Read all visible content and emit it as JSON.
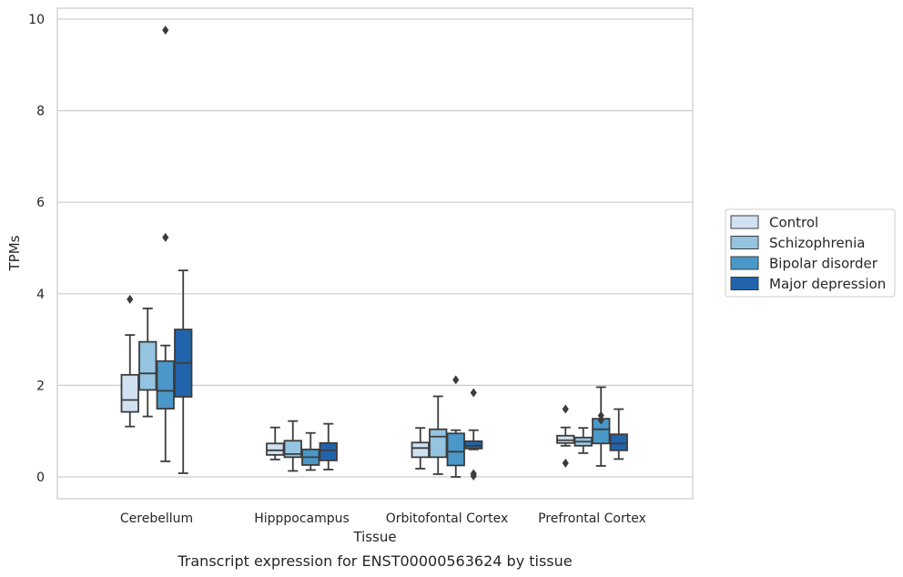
{
  "chart_data": {
    "type": "box",
    "caption": "Transcript expression for ENST00000563624 by tissue",
    "xlabel": "Tissue",
    "ylabel": "TPMs",
    "ylim": [
      -0.45,
      10.25
    ],
    "yticks": [
      0,
      2,
      4,
      6,
      8,
      10
    ],
    "grid": true,
    "legend_position": "right",
    "categories": [
      "Cerebellum",
      "Hipppocampus",
      "Orbitofontal Cortex",
      "Prefrontal Cortex"
    ],
    "series": [
      {
        "name": "Control",
        "color": "#d0e1f2",
        "boxes": [
          {
            "whisker_low": 1.1,
            "q1": 1.42,
            "median": 1.68,
            "q3": 2.23,
            "whisker_high": 3.1,
            "outliers": [
              3.88
            ]
          },
          {
            "whisker_low": 0.38,
            "q1": 0.48,
            "median": 0.58,
            "q3": 0.73,
            "whisker_high": 1.08,
            "outliers": []
          },
          {
            "whisker_low": 0.18,
            "q1": 0.43,
            "median": 0.63,
            "q3": 0.75,
            "whisker_high": 1.07,
            "outliers": []
          },
          {
            "whisker_low": 0.68,
            "q1": 0.74,
            "median": 0.8,
            "q3": 0.9,
            "whisker_high": 1.08,
            "outliers": [
              1.48,
              0.3
            ]
          }
        ]
      },
      {
        "name": "Schizophrenia",
        "color": "#94c4df",
        "boxes": [
          {
            "whisker_low": 1.32,
            "q1": 1.9,
            "median": 2.26,
            "q3": 2.95,
            "whisker_high": 3.68,
            "outliers": []
          },
          {
            "whisker_low": 0.13,
            "q1": 0.43,
            "median": 0.5,
            "q3": 0.79,
            "whisker_high": 1.22,
            "outliers": []
          },
          {
            "whisker_low": 0.06,
            "q1": 0.43,
            "median": 0.88,
            "q3": 1.04,
            "whisker_high": 1.76,
            "outliers": []
          },
          {
            "whisker_low": 0.52,
            "q1": 0.68,
            "median": 0.77,
            "q3": 0.86,
            "whisker_high": 1.07,
            "outliers": []
          }
        ]
      },
      {
        "name": "Bipolar disorder",
        "color": "#4a98c9",
        "boxes": [
          {
            "whisker_low": 0.34,
            "q1": 1.49,
            "median": 1.88,
            "q3": 2.53,
            "whisker_high": 2.87,
            "outliers": [
              9.76,
              5.23
            ]
          },
          {
            "whisker_low": 0.15,
            "q1": 0.26,
            "median": 0.43,
            "q3": 0.6,
            "whisker_high": 0.96,
            "outliers": []
          },
          {
            "whisker_low": 0.0,
            "q1": 0.25,
            "median": 0.55,
            "q3": 0.95,
            "whisker_high": 1.02,
            "outliers": [
              2.12
            ]
          },
          {
            "whisker_low": 0.24,
            "q1": 0.73,
            "median": 1.04,
            "q3": 1.27,
            "whisker_high": 1.96,
            "outliers": [
              1.34,
              1.24
            ]
          }
        ]
      },
      {
        "name": "Major depression",
        "color": "#2164ab",
        "boxes": [
          {
            "whisker_low": 0.08,
            "q1": 1.75,
            "median": 2.49,
            "q3": 3.22,
            "whisker_high": 4.51,
            "outliers": []
          },
          {
            "whisker_low": 0.16,
            "q1": 0.36,
            "median": 0.58,
            "q3": 0.74,
            "whisker_high": 1.16,
            "outliers": []
          },
          {
            "whisker_low": 0.6,
            "q1": 0.62,
            "median": 0.68,
            "q3": 0.78,
            "whisker_high": 1.02,
            "outliers": [
              1.84,
              0.07,
              0.02
            ]
          },
          {
            "whisker_low": 0.39,
            "q1": 0.58,
            "median": 0.73,
            "q3": 0.93,
            "whisker_high": 1.48,
            "outliers": []
          }
        ]
      }
    ]
  }
}
